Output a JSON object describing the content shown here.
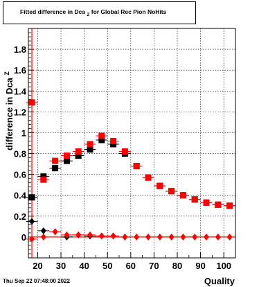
{
  "title_main": "Fitted difference in Dca",
  "title_sub": "Z",
  "title_rest": " for Global Rec Pion NoHits",
  "ylabel_main": "difference in Dca",
  "ylabel_sub": "Z",
  "xlabel": "Quality",
  "footer_date": "Thu Sep 22 07:48:00 2022",
  "colors": {
    "red": "#ff0000",
    "black": "#000000"
  },
  "chart_data": {
    "type": "scatter",
    "xlim": [
      16,
      105
    ],
    "ylim": [
      -0.2,
      2.0
    ],
    "grid": true,
    "x_ticks": [
      20,
      30,
      40,
      50,
      60,
      70,
      80,
      90,
      100
    ],
    "x_tick_labels": [
      "20",
      "30",
      "40",
      "50",
      "60",
      "70",
      "80",
      "90",
      "100"
    ],
    "y_ticks": [
      0,
      0.2,
      0.4,
      0.6,
      0.8,
      1.0,
      1.2,
      1.4,
      1.6,
      1.8
    ],
    "y_tick_labels": [
      "0",
      "0.2",
      "0.4",
      "0.6",
      "0.8",
      "1",
      "1.2",
      "1.4",
      "1.6",
      "1.8"
    ],
    "series": [
      {
        "marker": "square",
        "color": "#000000",
        "x": [
          17.5,
          22.5,
          27.5,
          32.5,
          37.5,
          42.5,
          47.5,
          52.5,
          57.5,
          62.5,
          67.5,
          72.5,
          77.5,
          82.5,
          87.5,
          92.5,
          97.5,
          102.5
        ],
        "y": [
          0.38,
          0.58,
          0.66,
          0.73,
          0.78,
          0.84,
          0.93,
          0.89,
          0.8,
          0.68,
          0.57,
          0.49,
          0.44,
          0.4,
          0.36,
          0.33,
          0.31,
          0.3
        ]
      },
      {
        "marker": "square",
        "color": "#ff0000",
        "x": [
          17.5,
          22.5,
          27.5,
          32.5,
          37.5,
          42.5,
          47.5,
          52.5,
          57.5,
          62.5,
          67.5,
          72.5,
          77.5,
          82.5,
          87.5,
          92.5,
          97.5,
          102.5
        ],
        "y": [
          1.29,
          0.55,
          0.73,
          0.78,
          0.82,
          0.89,
          0.97,
          0.92,
          0.82,
          0.68,
          0.57,
          0.49,
          0.44,
          0.4,
          0.36,
          0.33,
          0.31,
          0.3
        ]
      },
      {
        "marker": "diamond",
        "color": "#000000",
        "x": [
          17.5,
          22.5,
          27.5,
          32.5,
          37.5,
          42.5,
          47.5,
          52.5,
          57.5
        ],
        "y": [
          0.15,
          0.06,
          0.05,
          0.0,
          0.02,
          0.01,
          0.01,
          0.01,
          0.0
        ]
      },
      {
        "marker": "diamond",
        "color": "#ff0000",
        "x": [
          17.5,
          22.5,
          27.5,
          32.5,
          37.5,
          42.5,
          47.5,
          52.5,
          57.5,
          62.5,
          67.5,
          72.5,
          77.5,
          82.5,
          87.5,
          92.5,
          97.5,
          102.5
        ],
        "y": [
          -0.02,
          0.0,
          0.05,
          0.02,
          0.02,
          0.02,
          0.01,
          0.01,
          0.0,
          0.0,
          0.0,
          0.0,
          0.0,
          0.0,
          0.0,
          0.0,
          0.0,
          0.0
        ]
      }
    ]
  }
}
